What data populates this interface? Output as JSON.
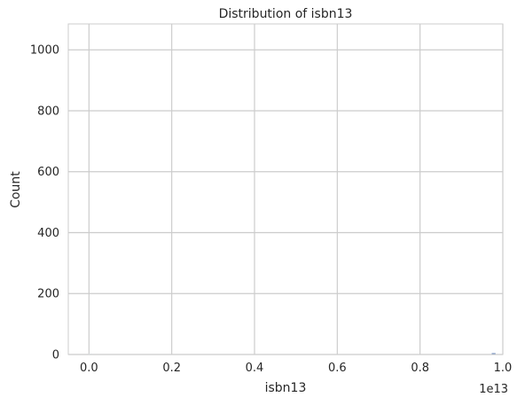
{
  "chart_data": {
    "type": "bar",
    "title": "Distribution of isbn13",
    "xlabel": "isbn13",
    "ylabel": "Count",
    "x_offset_text": "1e13",
    "xlim": [
      -0.05,
      1.0
    ],
    "ylim": [
      0,
      1085
    ],
    "x_ticks": [
      0.0,
      0.2,
      0.4,
      0.6,
      0.8,
      1.0
    ],
    "x_tick_labels": [
      "0.0",
      "0.2",
      "0.4",
      "0.6",
      "0.8",
      "1.0"
    ],
    "y_ticks": [
      0,
      200,
      400,
      600,
      800,
      1000
    ],
    "y_tick_labels": [
      "0",
      "200",
      "400",
      "600",
      "800",
      "1000"
    ],
    "grid": true,
    "bins": [
      {
        "x": 0.0,
        "width": 0.0098,
        "count": 2
      },
      {
        "x": 0.973,
        "width": 0.0098,
        "count": 5
      }
    ],
    "colors": {
      "bar": "#4c72b0",
      "grid": "#cccccc",
      "text": "#262626"
    }
  }
}
